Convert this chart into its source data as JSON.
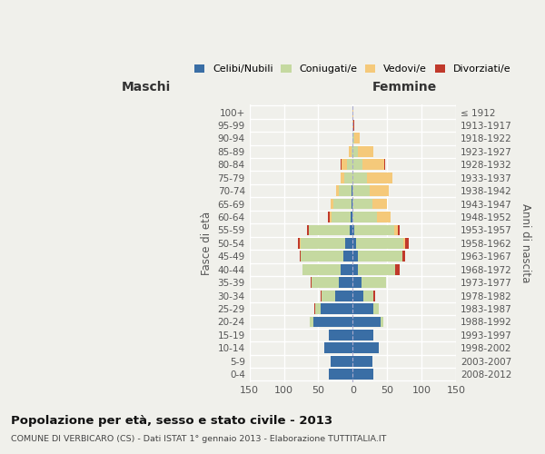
{
  "age_groups": [
    "0-4",
    "5-9",
    "10-14",
    "15-19",
    "20-24",
    "25-29",
    "30-34",
    "35-39",
    "40-44",
    "45-49",
    "50-54",
    "55-59",
    "60-64",
    "65-69",
    "70-74",
    "75-79",
    "80-84",
    "85-89",
    "90-94",
    "95-99",
    "100+"
  ],
  "birth_years": [
    "2008-2012",
    "2003-2007",
    "1998-2002",
    "1993-1997",
    "1988-1992",
    "1983-1987",
    "1978-1982",
    "1973-1977",
    "1968-1972",
    "1963-1967",
    "1958-1962",
    "1953-1957",
    "1948-1952",
    "1943-1947",
    "1938-1942",
    "1933-1937",
    "1928-1932",
    "1923-1927",
    "1918-1922",
    "1913-1917",
    "≤ 1912"
  ],
  "maschi": {
    "celibi": [
      35,
      32,
      42,
      35,
      57,
      47,
      25,
      20,
      18,
      14,
      11,
      4,
      3,
      2,
      2,
      0,
      0,
      0,
      0,
      0,
      0
    ],
    "coniugati": [
      0,
      0,
      0,
      0,
      5,
      8,
      20,
      40,
      55,
      62,
      65,
      60,
      28,
      26,
      18,
      12,
      8,
      2,
      0,
      0,
      0
    ],
    "vedovi": [
      0,
      0,
      0,
      0,
      0,
      0,
      0,
      0,
      0,
      0,
      1,
      0,
      2,
      4,
      4,
      5,
      8,
      4,
      1,
      0,
      0
    ],
    "divorziati": [
      0,
      0,
      0,
      0,
      0,
      1,
      1,
      1,
      0,
      1,
      2,
      3,
      3,
      0,
      0,
      0,
      2,
      0,
      0,
      0,
      0
    ]
  },
  "femmine": {
    "nubili": [
      30,
      28,
      38,
      30,
      40,
      30,
      15,
      13,
      8,
      7,
      5,
      2,
      0,
      0,
      0,
      0,
      0,
      0,
      0,
      0,
      0
    ],
    "coniugate": [
      0,
      0,
      0,
      0,
      5,
      8,
      15,
      35,
      53,
      65,
      68,
      58,
      35,
      28,
      24,
      20,
      14,
      8,
      2,
      0,
      0
    ],
    "vedove": [
      0,
      0,
      0,
      0,
      0,
      0,
      0,
      0,
      0,
      0,
      3,
      5,
      20,
      22,
      28,
      38,
      32,
      22,
      8,
      1,
      1
    ],
    "divorziate": [
      0,
      0,
      0,
      0,
      0,
      0,
      3,
      0,
      7,
      4,
      5,
      3,
      0,
      0,
      0,
      0,
      1,
      0,
      0,
      1,
      0
    ]
  },
  "colors": {
    "celibi": "#3a6ea5",
    "coniugati": "#c5d9a0",
    "vedovi": "#f5c97a",
    "divorziati": "#c0392b"
  },
  "xlim": 150,
  "title": "Popolazione per età, sesso e stato civile - 2013",
  "subtitle": "COMUNE DI VERBICARO (CS) - Dati ISTAT 1° gennaio 2013 - Elaborazione TUTTITALIA.IT",
  "xlabel_left": "Maschi",
  "xlabel_right": "Femmine",
  "ylabel_left": "Fasce di età",
  "ylabel_right": "Anni di nascita",
  "bg_color": "#f0f0eb",
  "grid_color": "#ffffff"
}
